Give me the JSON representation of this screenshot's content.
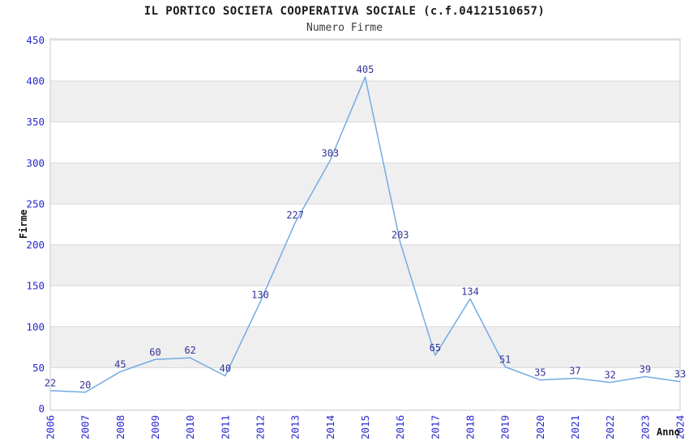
{
  "chart_data": {
    "type": "line",
    "title": "IL PORTICO SOCIETA COOPERATIVA SOCIALE (c.f.04121510657)",
    "subtitle": "Numero Firme",
    "xlabel": "Anno",
    "ylabel": "Firme",
    "categories": [
      "2006",
      "2007",
      "2008",
      "2009",
      "2010",
      "2011",
      "2012",
      "2013",
      "2014",
      "2015",
      "2016",
      "2017",
      "2018",
      "2019",
      "2020",
      "2021",
      "2022",
      "2023",
      "2024"
    ],
    "values": [
      22,
      20,
      45,
      60,
      62,
      40,
      130,
      227,
      303,
      405,
      203,
      65,
      134,
      51,
      35,
      37,
      32,
      39,
      33
    ],
    "ylim": [
      0,
      450
    ],
    "ytick_step": 50,
    "grid": true,
    "band_striping": true,
    "legend_position": "none",
    "colors": {
      "line": "#74abe2",
      "tick_label": "#2727cf",
      "point_label": "#333399",
      "band": "#efefef",
      "gridline": "#d9d9d9",
      "plot_border": "#c9c9c9",
      "plot_background": "#ffffff",
      "title": "#1a1a1a",
      "subtitle": "#3a3a3a",
      "axis_title": "#111111"
    }
  }
}
